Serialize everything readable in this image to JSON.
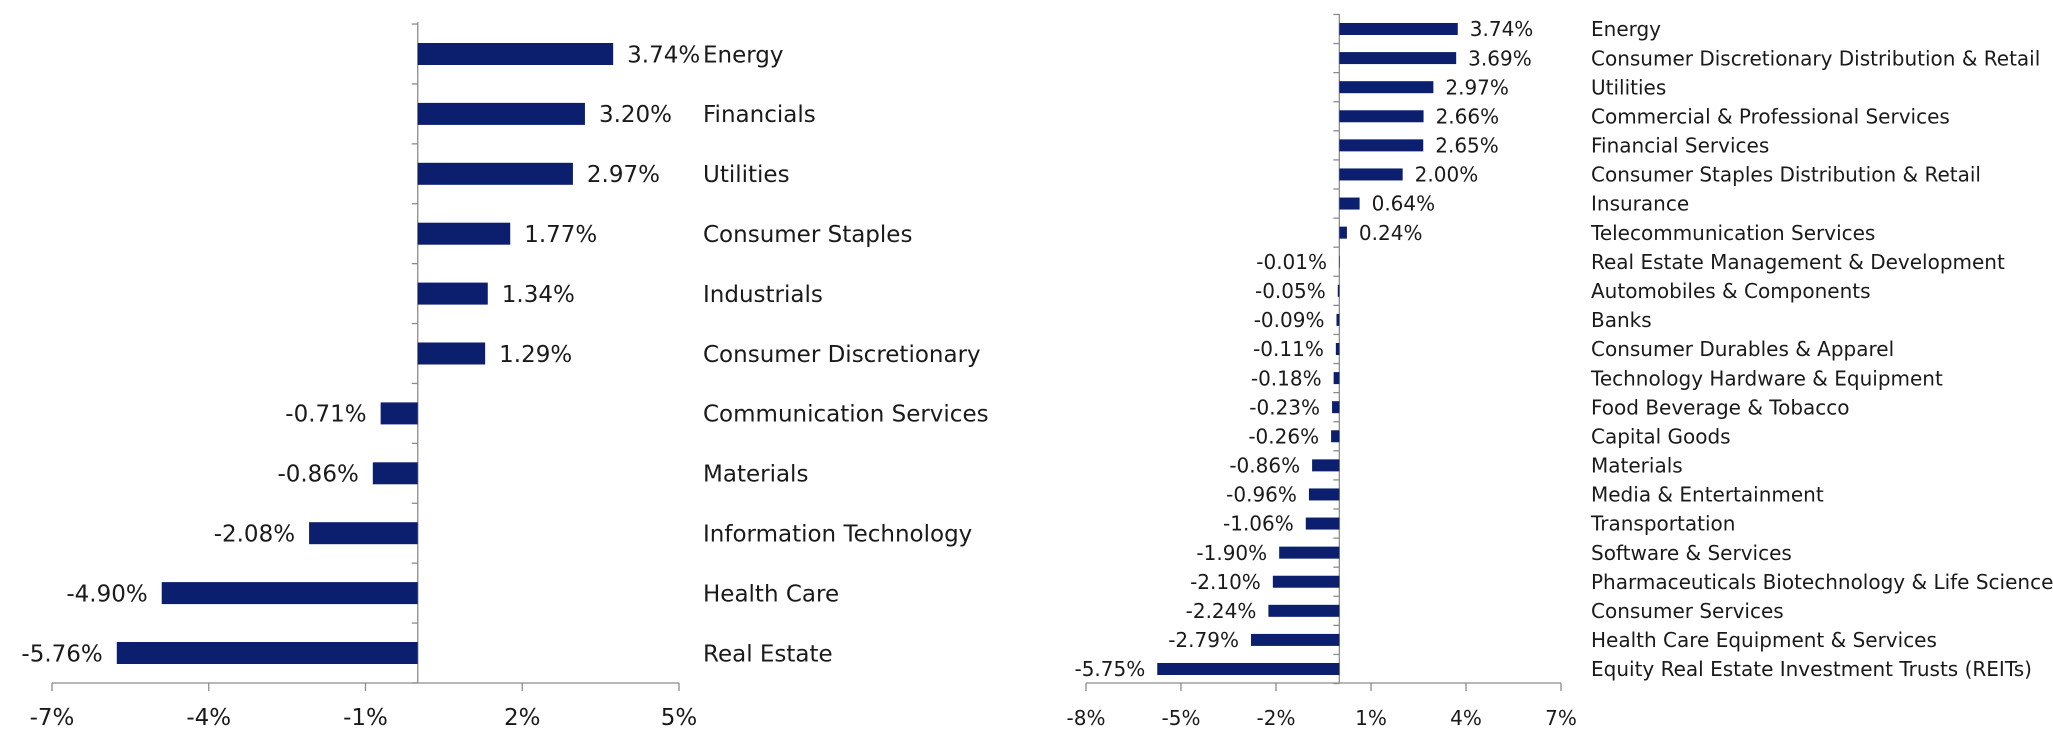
{
  "chart_data": [
    {
      "type": "bar",
      "orientation": "horizontal",
      "categories": [
        "Energy",
        "Financials",
        "Utilities",
        "Consumer Staples",
        "Industrials",
        "Consumer Discretionary",
        "Communication Services",
        "Materials",
        "Information Technology",
        "Health Care",
        "Real Estate"
      ],
      "values": [
        3.74,
        3.2,
        2.97,
        1.77,
        1.34,
        1.29,
        -0.71,
        -0.86,
        -2.08,
        -4.9,
        -5.76
      ],
      "value_labels": [
        "3.74%",
        "3.20%",
        "2.97%",
        "1.77%",
        "1.34%",
        "1.29%",
        "-0.71%",
        "-0.86%",
        "-2.08%",
        "-4.90%",
        "-5.76%"
      ],
      "xlim": [
        -7,
        5
      ],
      "x_ticks": [
        -7,
        -4,
        -1,
        2,
        5
      ],
      "x_tick_labels": [
        "-7%",
        "-4%",
        "-1%",
        "2%",
        "5%"
      ],
      "bar_color": "#0b1f6e",
      "grid": false,
      "legend": "none"
    },
    {
      "type": "bar",
      "orientation": "horizontal",
      "categories": [
        "Energy",
        "Consumer Discretionary Distribution & Retail",
        "Utilities",
        "Commercial & Professional Services",
        "Financial Services",
        "Consumer Staples Distribution & Retail",
        "Insurance",
        "Telecommunication Services",
        "Real Estate Management & Development",
        "Automobiles & Components",
        "Banks",
        "Consumer Durables & Apparel",
        "Technology Hardware & Equipment",
        "Food Beverage & Tobacco",
        "Capital Goods",
        "Materials",
        "Media & Entertainment",
        "Transportation",
        "Software & Services",
        "Pharmaceuticals Biotechnology & Life Sciences",
        "Consumer Services",
        "Health Care Equipment & Services",
        "Equity Real Estate Investment Trusts (REITs)"
      ],
      "values": [
        3.74,
        3.69,
        2.97,
        2.66,
        2.65,
        2.0,
        0.64,
        0.24,
        -0.01,
        -0.05,
        -0.09,
        -0.11,
        -0.18,
        -0.23,
        -0.26,
        -0.86,
        -0.96,
        -1.06,
        -1.9,
        -2.1,
        -2.24,
        -2.79,
        -5.75
      ],
      "value_labels": [
        "3.74%",
        "3.69%",
        "2.97%",
        "2.66%",
        "2.65%",
        "2.00%",
        "0.64%",
        "0.24%",
        "-0.01%",
        "-0.05%",
        "-0.09%",
        "-0.11%",
        "-0.18%",
        "-0.23%",
        "-0.26%",
        "-0.86%",
        "-0.96%",
        "-1.06%",
        "-1.90%",
        "-2.10%",
        "-2.24%",
        "-2.79%",
        "-5.75%"
      ],
      "xlim": [
        -8,
        7
      ],
      "x_ticks": [
        -8,
        -5,
        -2,
        1,
        4,
        7
      ],
      "x_tick_labels": [
        "-8%",
        "-5%",
        "-2%",
        "1%",
        "4%",
        "7%"
      ],
      "bar_color": "#0b1f6e",
      "grid": false,
      "legend": "none"
    }
  ]
}
